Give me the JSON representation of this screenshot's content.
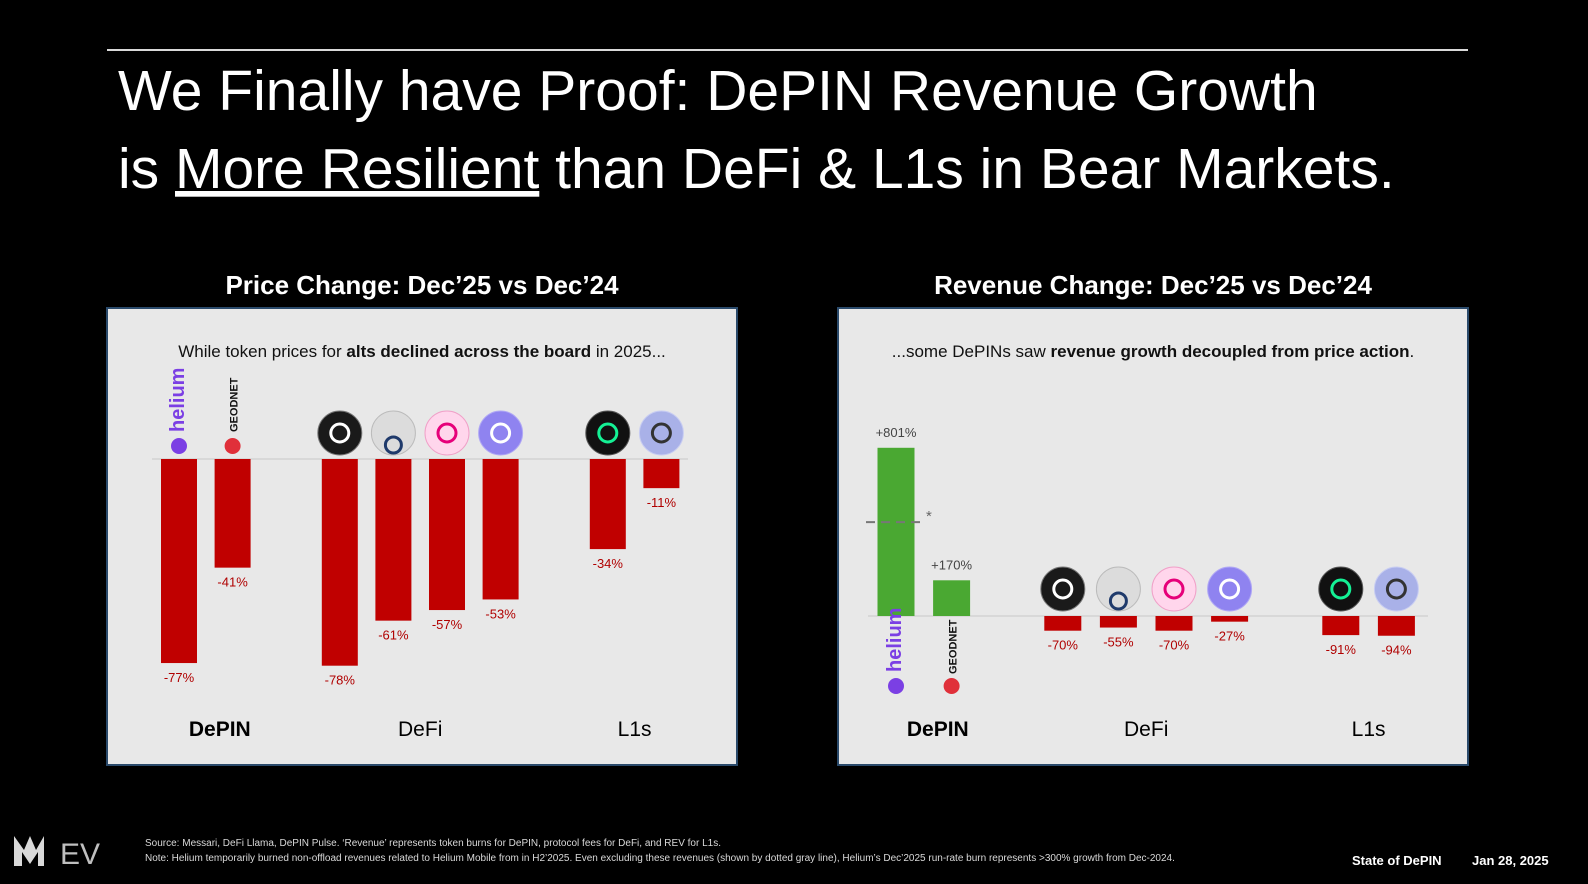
{
  "slide": {
    "title_line1": "We Finally have Proof: DePIN Revenue Growth",
    "title_line2": [
      "is ",
      "More Resilient",
      " than DeFi & L1s in Bear Markets."
    ],
    "logo": "EV",
    "source": "Source: Messari, DeFi Llama, DePIN Pulse. ‘Revenue’ represents token burns for DePIN, protocol fees for DeFi, and REV for L1s.",
    "note": "Note: Helium temporarily burned non-offload revenues related to Helium Mobile from in H2’2025. Even excluding these revenues (shown by dotted gray line), Helium’s Dec’2025 run-rate burn represents >300% growth from Dec-2024.",
    "footer_name": "State of DePIN",
    "footer_date": "Jan 28, 2025"
  },
  "chart_data": [
    {
      "type": "bar",
      "title": "Price Change: Dec’25 vs Dec’24",
      "subtitle": [
        "While token prices for ",
        "alts declined across the board",
        " in 2025..."
      ],
      "categories": [
        "helium",
        "GEODNET",
        null,
        null,
        null,
        null,
        null,
        null
      ],
      "groups": [
        {
          "name": "DePIN",
          "size": 2
        },
        {
          "name": "DeFi",
          "size": 4
        },
        {
          "name": "L1s",
          "size": 2
        }
      ],
      "values": [
        -77,
        -41,
        -78,
        -61,
        -57,
        -53,
        -34,
        -11
      ],
      "value_labels": [
        "-77%",
        "-41%",
        "-78%",
        "-61%",
        "-57%",
        "-53%",
        "-34%",
        "-11%"
      ],
      "color": "#c00000",
      "ylim": [
        -80,
        0
      ]
    },
    {
      "type": "bar",
      "title": "Revenue Change: Dec’25 vs Dec’24",
      "subtitle": [
        "...some DePINs saw ",
        "revenue growth decoupled from price action",
        "."
      ],
      "categories": [
        "helium",
        "GEODNET",
        null,
        null,
        null,
        null,
        null,
        null
      ],
      "groups": [
        {
          "name": "DePIN",
          "size": 2
        },
        {
          "name": "DeFi",
          "size": 4
        },
        {
          "name": "L1s",
          "size": 2
        }
      ],
      "values": [
        801,
        170,
        -70,
        -55,
        -70,
        -27,
        -91,
        -94
      ],
      "value_labels": [
        "+801%",
        "+170%",
        "-70%",
        "-55%",
        "-70%",
        "-27%",
        "-91%",
        "-94%"
      ],
      "colors": {
        "positive": "#4aa832",
        "negative": "#c00000"
      },
      "reference_line": {
        "value": 447,
        "label": "*"
      },
      "ylim": [
        -100,
        850
      ]
    }
  ]
}
